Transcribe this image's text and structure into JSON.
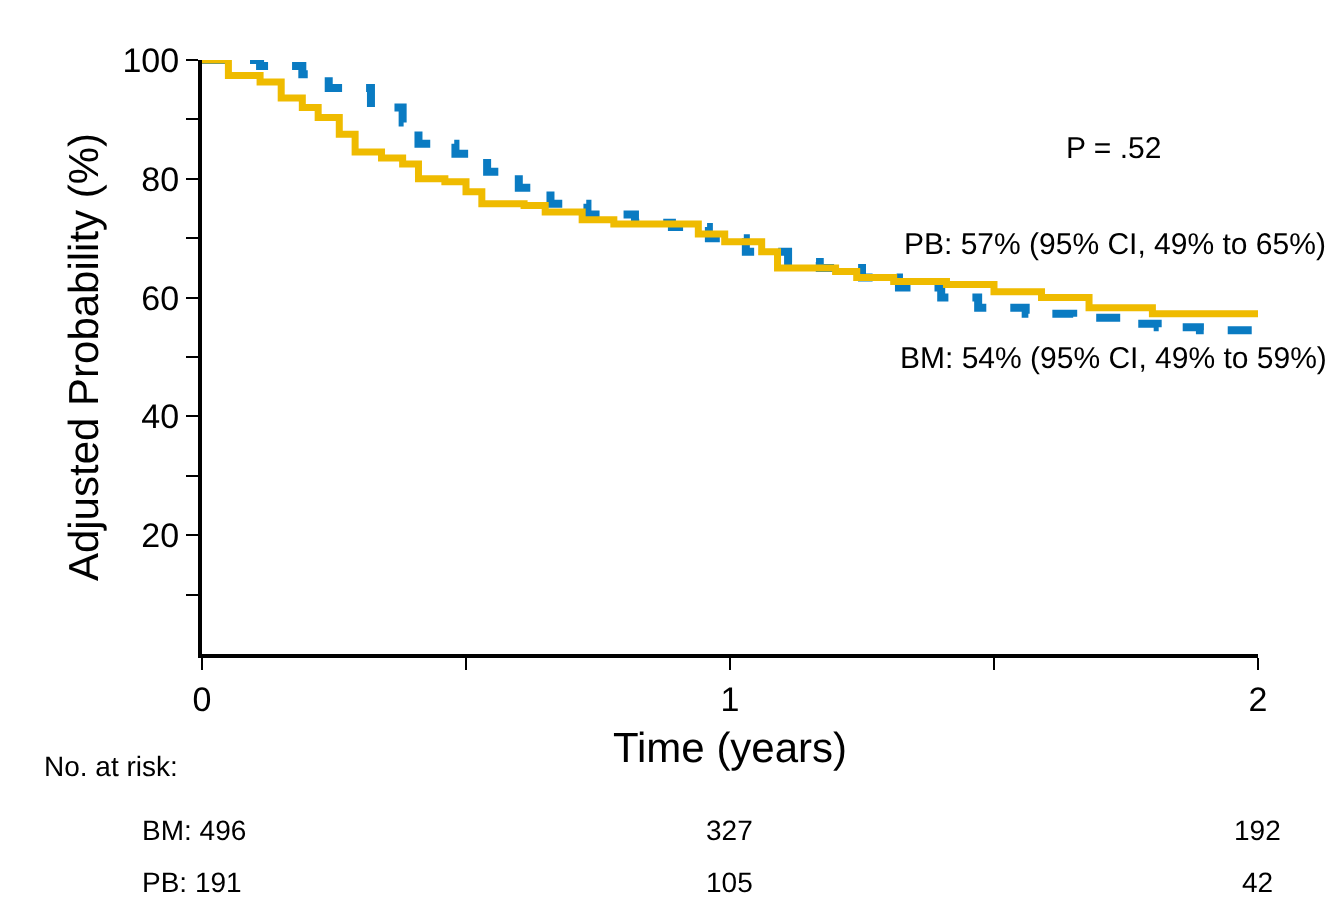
{
  "chart_data": {
    "type": "step",
    "xlabel": "Time (years)",
    "ylabel": "Adjusted Probability (%)",
    "xlim": [
      0,
      2
    ],
    "xticks": [
      0,
      {
        "value": 0.5,
        "label": null
      },
      1,
      {
        "value": 1.5,
        "label": null
      },
      2
    ],
    "ylim": [
      0,
      100
    ],
    "yticks": [
      {
        "value": 10,
        "label": null
      },
      20,
      {
        "value": 30,
        "label": null
      },
      40,
      {
        "value": 50,
        "label": null
      },
      60,
      {
        "value": 70,
        "label": null
      },
      80,
      {
        "value": 90,
        "label": null
      },
      100
    ],
    "series": [
      {
        "color": "#0a7bc2",
        "line_style": "dashed",
        "x": [
          0,
          0.11,
          0.19,
          0.24,
          0.32,
          0.38,
          0.41,
          0.48,
          0.54,
          0.6,
          0.66,
          0.73,
          0.82,
          0.89,
          0.96,
          1.03,
          1.11,
          1.17,
          1.25,
          1.32,
          1.4,
          1.47,
          1.56,
          1.65,
          1.74,
          1.81,
          1.89,
          1.99
        ],
        "values": [
          100,
          99,
          97.6,
          95.3,
          92,
          89.5,
          85.9,
          84.2,
          81.2,
          78.5,
          75.8,
          74,
          72.6,
          71.9,
          70,
          67.7,
          66,
          65,
          63.4,
          61.7,
          60,
          58.3,
          57.3,
          56.6,
          55.6,
          55,
          54.5,
          54.2
        ]
      },
      {
        "color": "#efbb00",
        "line_style": "solid",
        "x": [
          0,
          0.05,
          0.11,
          0.15,
          0.19,
          0.22,
          0.26,
          0.29,
          0.34,
          0.38,
          0.41,
          0.46,
          0.5,
          0.53,
          0.61,
          0.65,
          0.72,
          0.78,
          0.92,
          0.94,
          0.99,
          1.06,
          1.09,
          1.2,
          1.24,
          1.31,
          1.41,
          1.5,
          1.59,
          1.68,
          1.8,
          2.0
        ],
        "values": [
          100,
          97.4,
          96.3,
          93.6,
          92,
          90.3,
          87.5,
          84.5,
          83.5,
          82.5,
          80,
          79.5,
          77.8,
          75.8,
          75.5,
          74.4,
          73.1,
          72.4,
          72.4,
          70.7,
          69.4,
          67.7,
          65,
          64.4,
          63.4,
          62.7,
          62.2,
          61,
          60,
          58.3,
          57.3,
          57.3
        ]
      }
    ],
    "annotations": [
      "P = .52",
      "PB: 57% (95% CI, 49% to 65%)",
      "BM: 54% (95% CI, 49% to 59%)",
      "No. at risk:",
      "BM: 496",
      "327",
      "192",
      "PB: 191",
      "105",
      "42"
    ]
  }
}
